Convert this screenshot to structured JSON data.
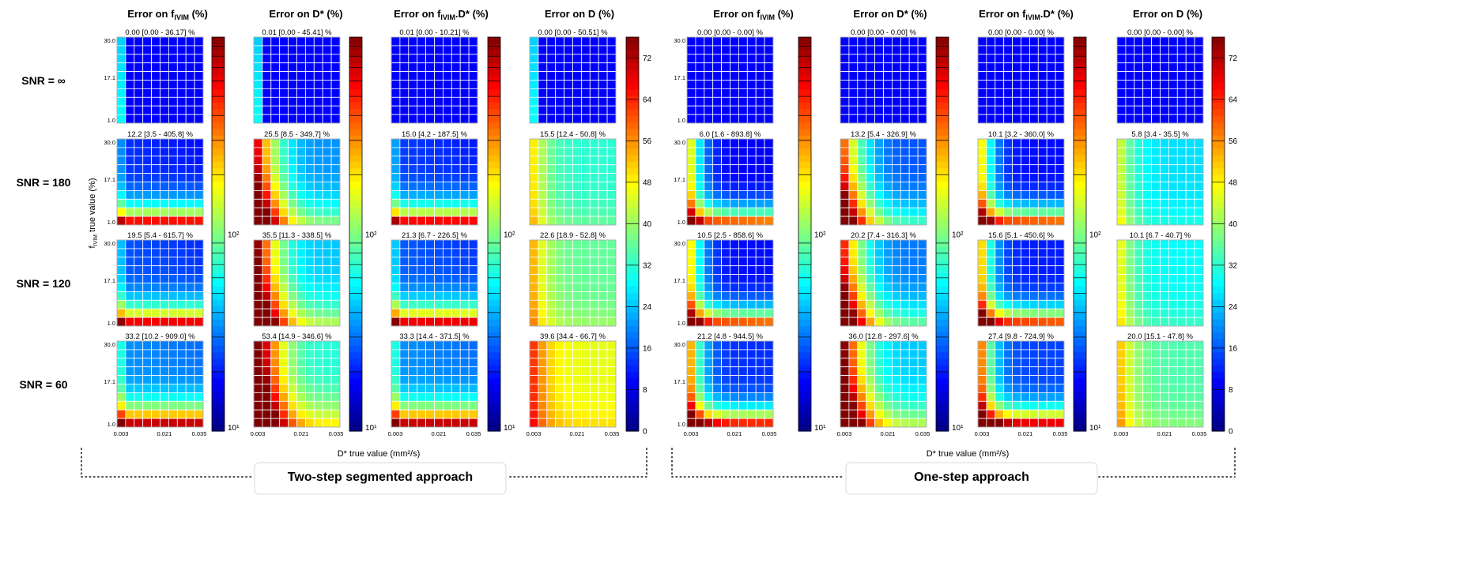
{
  "column_titles": {
    "err_f": {
      "pre": "Error on f",
      "sub": "IVIM",
      "post": " (%)"
    },
    "err_dstar": {
      "pre": "Error on D* (%)",
      "sub": "",
      "post": ""
    },
    "err_fd": {
      "pre": "Error on f",
      "sub": "IVIM",
      "post": ".D* (%)"
    },
    "err_d": {
      "pre": "Error on D (%)",
      "sub": "",
      "post": ""
    }
  },
  "row_labels": [
    "SNR = ∞",
    "SNR = 180",
    "SNR = 120",
    "SNR = 60"
  ],
  "y_axis_label": {
    "pre": "f",
    "sub": "IVIM",
    "post": " true value (%)"
  },
  "x_axis_label": "D* true value (mm²/s)",
  "y_ticks": [
    "30.0",
    "17.1",
    "1.0"
  ],
  "x_ticks": [
    "0.003",
    "0.021",
    "0.035"
  ],
  "approach_labels": [
    "Two-step segmented approach",
    "One-step approach"
  ],
  "colorbars": {
    "log_ticks": [
      "10¹",
      "10²"
    ],
    "linear_ticks": [
      "0",
      "8",
      "16",
      "24",
      "32",
      "40",
      "48",
      "56",
      "64",
      "72"
    ]
  },
  "chart_data": {
    "type": "heatmap",
    "colormap": "jet",
    "grid_size": [
      10,
      10
    ],
    "approaches": [
      {
        "name": "Two-step segmented approach",
        "columns": [
          "err_f",
          "err_dstar",
          "err_fd",
          "err_d"
        ],
        "panels": [
          [
            {
              "median": "0.00",
              "range": "0.00 - 36.17",
              "unit": "%",
              "profile": "edge"
            },
            {
              "median": "0.01",
              "range": "0.00 - 45.41",
              "unit": "%",
              "profile": "edge"
            },
            {
              "median": "0.01",
              "range": "0.00 - 10.21",
              "unit": "%",
              "profile": "flat"
            },
            {
              "median": "0.00",
              "range": "0.00 - 50.51",
              "unit": "%",
              "profile": "edge"
            }
          ],
          [
            {
              "median": "12.2",
              "range": "3.5 - 405.8",
              "unit": "%",
              "profile": "bottom"
            },
            {
              "median": "25.5",
              "range": "8.5 - 349.7",
              "unit": "%",
              "profile": "corner"
            },
            {
              "median": "15.0",
              "range": "4.2 - 187.5",
              "unit": "%",
              "profile": "bottom"
            },
            {
              "median": "15.5",
              "range": "12.4 - 50.8",
              "unit": "%",
              "profile": "uniform"
            }
          ],
          [
            {
              "median": "19.5",
              "range": "5.4 - 615.7",
              "unit": "%",
              "profile": "bottom"
            },
            {
              "median": "35.5",
              "range": "11.3 - 338.5",
              "unit": "%",
              "profile": "corner"
            },
            {
              "median": "21.3",
              "range": "6.7 - 226.5",
              "unit": "%",
              "profile": "bottom"
            },
            {
              "median": "22.6",
              "range": "18.9 - 52.8",
              "unit": "%",
              "profile": "uniform"
            }
          ],
          [
            {
              "median": "33.2",
              "range": "10.2 - 909.0",
              "unit": "%",
              "profile": "bottom"
            },
            {
              "median": "53.4",
              "range": "14.9 - 346.6",
              "unit": "%",
              "profile": "corner"
            },
            {
              "median": "33.3",
              "range": "14.4 - 371.5",
              "unit": "%",
              "profile": "bottom"
            },
            {
              "median": "39.6",
              "range": "34.4 - 66.7",
              "unit": "%",
              "profile": "uniform"
            }
          ]
        ]
      },
      {
        "name": "One-step approach",
        "columns": [
          "err_f",
          "err_dstar",
          "err_fd",
          "err_d"
        ],
        "panels": [
          [
            {
              "median": "0.00",
              "range": "0.00 - 0.00",
              "unit": "%",
              "profile": "flat"
            },
            {
              "median": "0.00",
              "range": "0.00 - 0.00",
              "unit": "%",
              "profile": "flat"
            },
            {
              "median": "0.00",
              "range": "0.00 - 0.00",
              "unit": "%",
              "profile": "flat"
            },
            {
              "median": "0.00",
              "range": "0.00 - 0.00",
              "unit": "%",
              "profile": "flat"
            }
          ],
          [
            {
              "median": "6.0",
              "range": "1.6 - 893.8",
              "unit": "%",
              "profile": "lshape"
            },
            {
              "median": "13.2",
              "range": "5.4 - 326.9",
              "unit": "%",
              "profile": "corner"
            },
            {
              "median": "10.1",
              "range": "3.2 - 360.0",
              "unit": "%",
              "profile": "lshape"
            },
            {
              "median": "5.8",
              "range": "3.4 - 35.5",
              "unit": "%",
              "profile": "uniform"
            }
          ],
          [
            {
              "median": "10.5",
              "range": "2.5 - 858.6",
              "unit": "%",
              "profile": "lshape"
            },
            {
              "median": "20.2",
              "range": "7.4 - 316.3",
              "unit": "%",
              "profile": "corner"
            },
            {
              "median": "15.6",
              "range": "5.1 - 450.6",
              "unit": "%",
              "profile": "lshape"
            },
            {
              "median": "10.1",
              "range": "6.7 - 40.7",
              "unit": "%",
              "profile": "uniform"
            }
          ],
          [
            {
              "median": "21.2",
              "range": "4.8 - 944.5",
              "unit": "%",
              "profile": "lshape"
            },
            {
              "median": "36.0",
              "range": "12.8 - 297.6",
              "unit": "%",
              "profile": "corner"
            },
            {
              "median": "27.4",
              "range": "9.8 - 724.9",
              "unit": "%",
              "profile": "lshape"
            },
            {
              "median": "20.0",
              "range": "15.1 - 47.8",
              "unit": "%",
              "profile": "uniform"
            }
          ]
        ]
      }
    ],
    "colorbar_log": {
      "min": 10,
      "max": 1000,
      "labels": [
        "10¹",
        "10²"
      ]
    },
    "colorbar_linear": {
      "min": 0,
      "max": 76,
      "labels": [
        "0",
        "8",
        "16",
        "24",
        "32",
        "40",
        "48",
        "56",
        "64",
        "72"
      ]
    }
  }
}
